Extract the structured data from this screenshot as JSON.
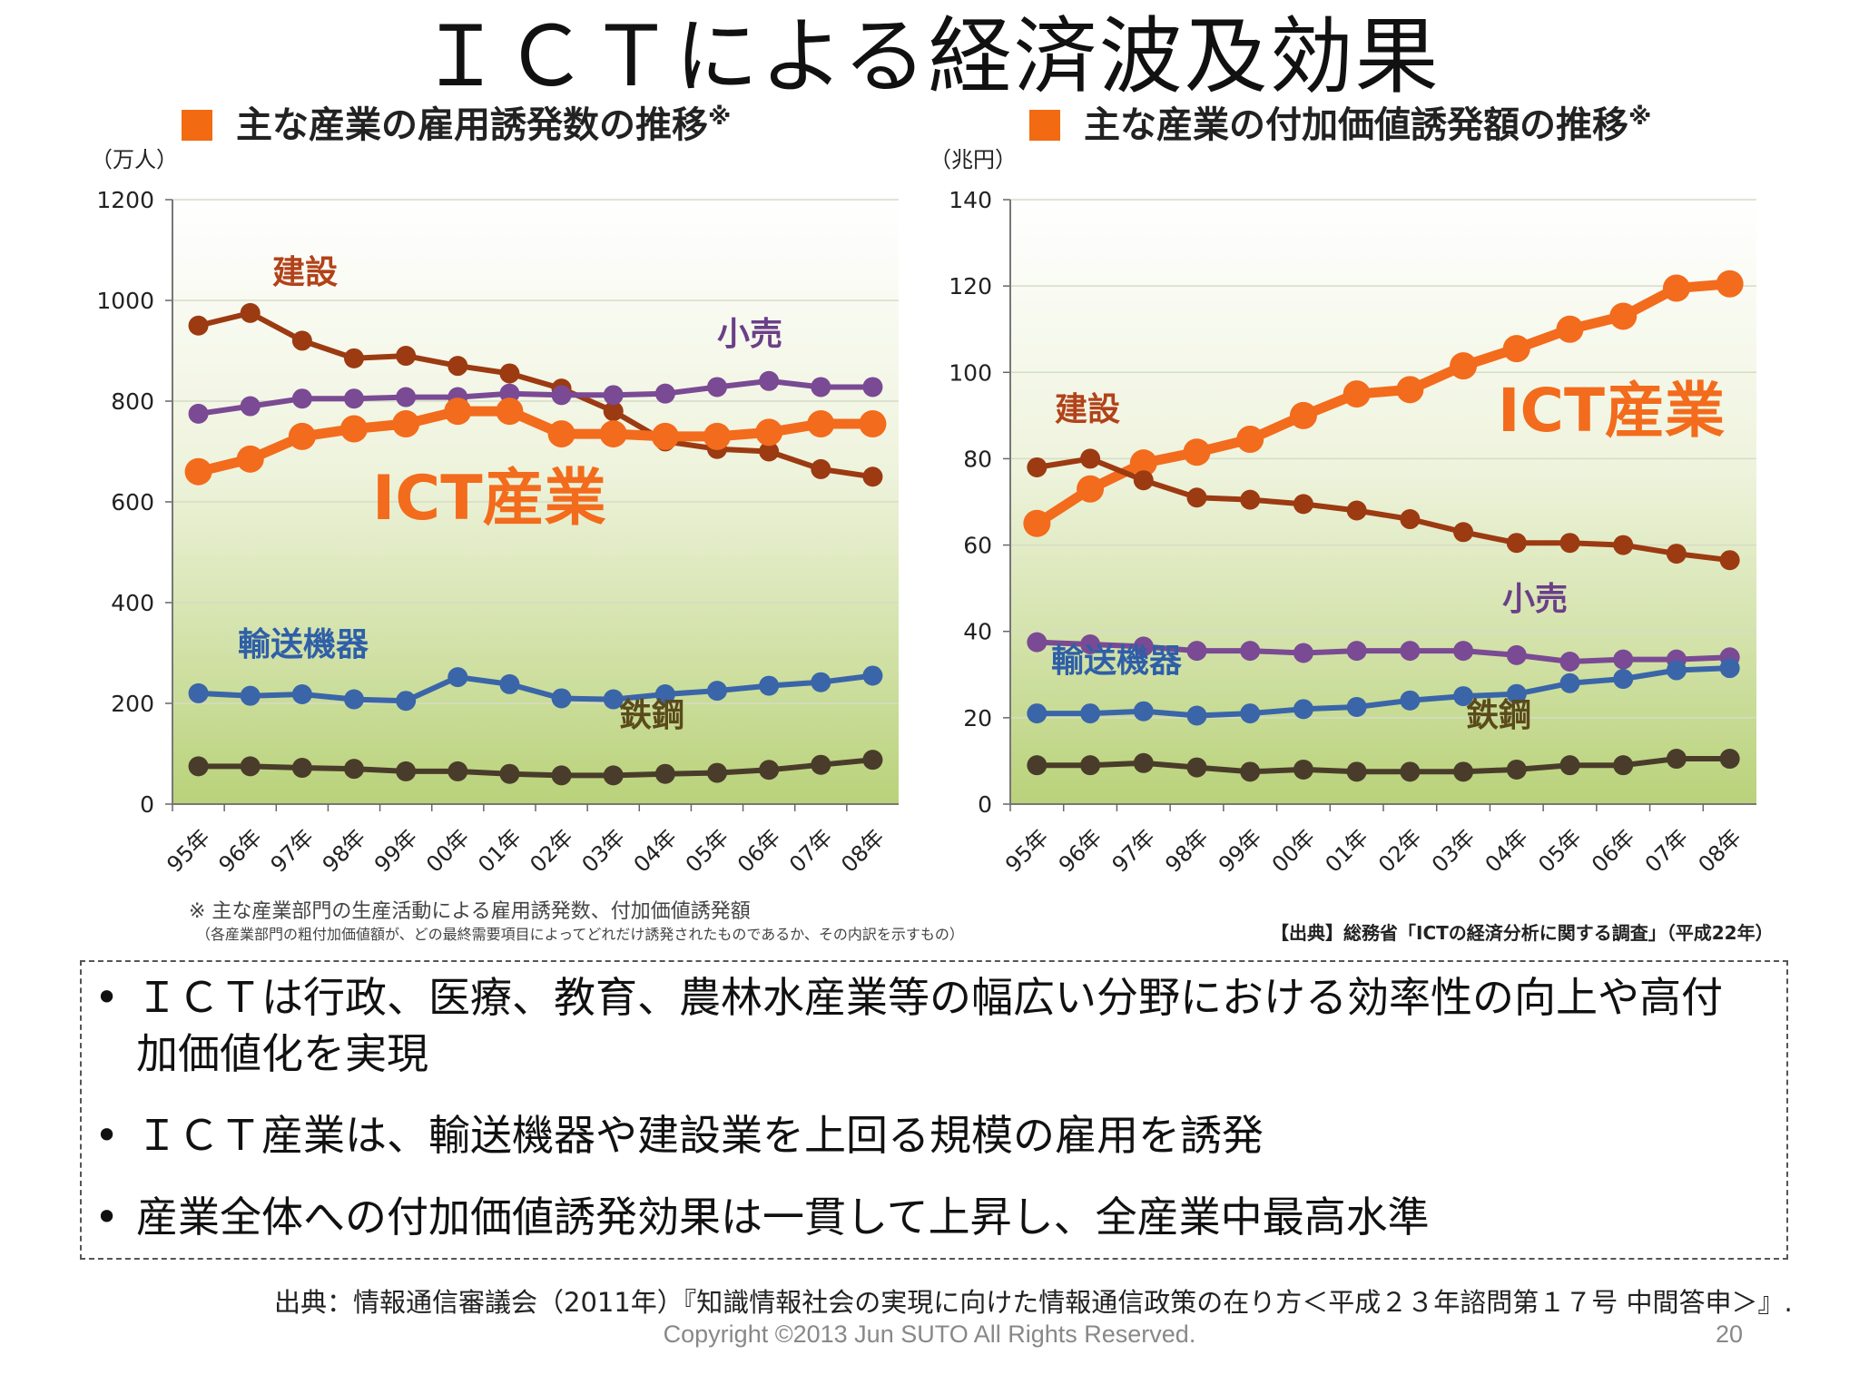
{
  "title": "ＩＣＴによる経済波及効果",
  "chart_data": [
    {
      "type": "line",
      "title": "主な産業の雇用誘発数の推移",
      "title_mark": "※",
      "ylabel": "（万人）",
      "xlabel": "",
      "ylim": [
        0,
        1200
      ],
      "yticks": [
        "0",
        "200",
        "400",
        "600",
        "800",
        "1000",
        "1200"
      ],
      "grid": true,
      "categories": [
        "95年",
        "96年",
        "97年",
        "98年",
        "99年",
        "00年",
        "01年",
        "02年",
        "03年",
        "04年",
        "05年",
        "06年",
        "07年",
        "08年"
      ],
      "series": [
        {
          "name": "建設",
          "color": "#9c3a12",
          "label_color": "#b2421a",
          "values": [
            950,
            975,
            920,
            885,
            890,
            870,
            855,
            825,
            780,
            720,
            705,
            700,
            665,
            650
          ]
        },
        {
          "name": "小売",
          "color": "#7a4a94",
          "label_color": "#6b3f88",
          "values": [
            775,
            790,
            805,
            805,
            808,
            808,
            815,
            812,
            812,
            815,
            828,
            840,
            828,
            828
          ]
        },
        {
          "name": "ICT産業",
          "color": "#f36b1c",
          "label_color": "#f36b1c",
          "values": [
            660,
            685,
            730,
            745,
            755,
            780,
            780,
            735,
            735,
            730,
            730,
            738,
            755,
            755
          ]
        },
        {
          "name": "輸送機器",
          "color": "#3a65a8",
          "label_color": "#2f5fa8",
          "values": [
            220,
            215,
            218,
            208,
            205,
            252,
            238,
            210,
            208,
            218,
            225,
            235,
            242,
            255
          ]
        },
        {
          "name": "鉄鋼",
          "color": "#4a3c2a",
          "label_color": "#5a4a1c",
          "values": [
            75,
            75,
            72,
            70,
            65,
            65,
            60,
            57,
            57,
            60,
            62,
            68,
            78,
            88
          ]
        }
      ]
    },
    {
      "type": "line",
      "title": "主な産業の付加価値誘発額の推移",
      "title_mark": "※",
      "ylabel": "（兆円）",
      "xlabel": "",
      "ylim": [
        0,
        140
      ],
      "yticks": [
        "0",
        "20",
        "40",
        "60",
        "80",
        "100",
        "120",
        "140"
      ],
      "grid": true,
      "categories": [
        "95年",
        "96年",
        "97年",
        "98年",
        "99年",
        "00年",
        "01年",
        "02年",
        "03年",
        "04年",
        "05年",
        "06年",
        "07年",
        "08年"
      ],
      "series": [
        {
          "name": "ICT産業",
          "color": "#f36b1c",
          "label_color": "#f36b1c",
          "values": [
            65,
            73,
            79,
            81.5,
            84.5,
            90,
            95,
            96,
            101.5,
            105.5,
            110,
            113,
            119.5,
            120.5
          ]
        },
        {
          "name": "建設",
          "color": "#9c3a12",
          "label_color": "#b2421a",
          "values": [
            78,
            80,
            75,
            71,
            70.5,
            69.5,
            68,
            66,
            63,
            60.5,
            60.5,
            60,
            58,
            56.5
          ]
        },
        {
          "name": "小売",
          "color": "#7a4a94",
          "label_color": "#6b3f88",
          "values": [
            37.5,
            37,
            36.5,
            35.5,
            35.5,
            35,
            35.5,
            35.5,
            35.5,
            34.5,
            33,
            33.5,
            33.5,
            34
          ]
        },
        {
          "name": "輸送機器",
          "color": "#3a65a8",
          "label_color": "#2f5fa8",
          "values": [
            21,
            21,
            21.5,
            20.5,
            21,
            22,
            22.5,
            24,
            25,
            25.5,
            28,
            29,
            31,
            31.5
          ]
        },
        {
          "name": "鉄鋼",
          "color": "#4a3c2a",
          "label_color": "#5a4a1c",
          "values": [
            9,
            9,
            9.5,
            8.5,
            7.5,
            8,
            7.5,
            7.5,
            7.5,
            8,
            9,
            9,
            10.5,
            10.5
          ]
        }
      ]
    }
  ],
  "notes": {
    "main": "※ 主な産業部門の生産活動による雇用誘発数、付加価値誘発額",
    "sub": "（各産業部門の粗付加価値額が、どの最終需要項目によってどれだけ誘発されたものであるか、その内訳を示すもの）",
    "chart_source": "【出典】総務省「ICTの経済分析に関する調査」（平成22年）"
  },
  "bullets": [
    "ＩＣＴは行政、医療、教育、農林水産業等の幅広い分野における効率性の向上や高付加価値化を実現",
    "ＩＣＴ産業は、輸送機器や建設業を上回る規模の雇用を誘発",
    "産業全体への付加価値誘発効果は一貫して上昇し、全産業中最高水準"
  ],
  "bullet_symbol": "•",
  "footer": {
    "source": "出典：情報通信審議会（2011年）『知識情報社会の実現に向けた情報通信政策の在り方＜平成２３年諮問第１７号 中間答申＞』.",
    "copyright": "Copyright ©2013 Jun SUTO All Rights Reserved.",
    "page_number": "20"
  }
}
